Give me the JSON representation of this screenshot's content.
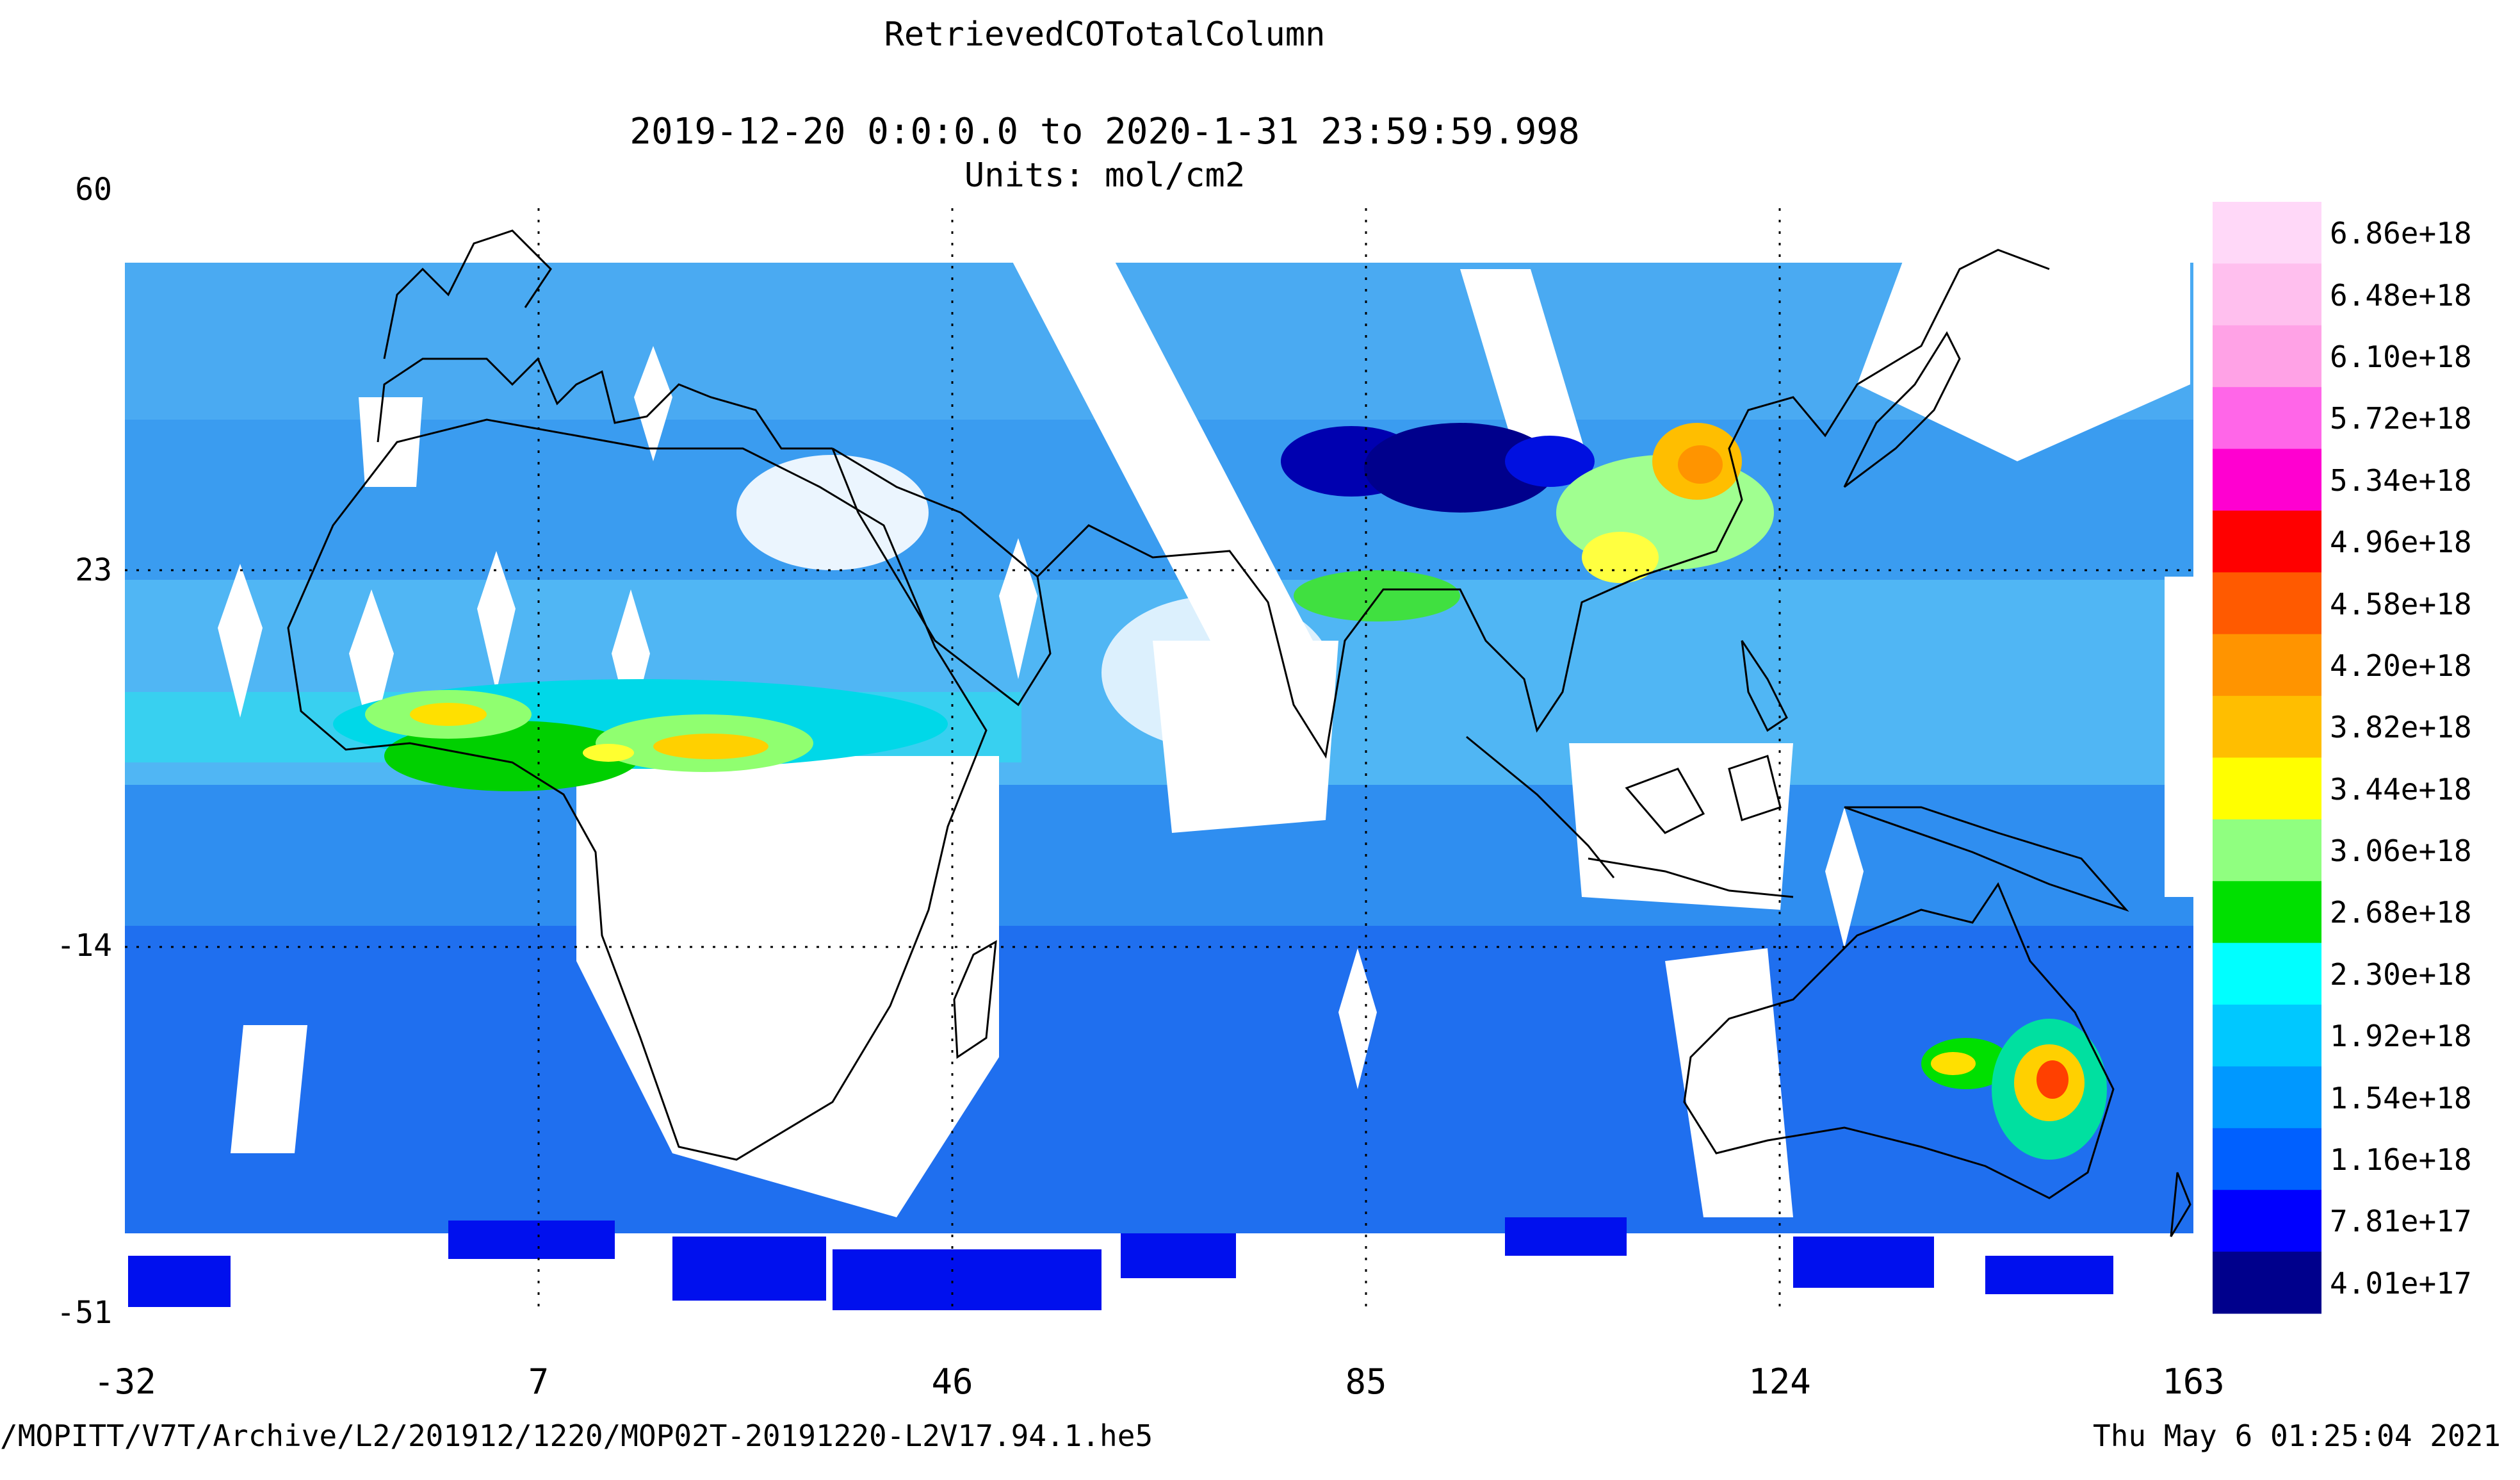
{
  "header": {
    "title": "RetrievedCOTotalColumn",
    "date_range": "2019-12-20 0:0:0.0 to 2020-1-31 23:59:59.998",
    "units": "Units: mol/cm2"
  },
  "axes": {
    "y_ticks": [
      "60",
      "23",
      "-14",
      "-51"
    ],
    "x_ticks": [
      "-32",
      "7",
      "46",
      "85",
      "124",
      "163"
    ]
  },
  "colorbar": {
    "labels": [
      "6.86e+18",
      "6.48e+18",
      "6.10e+18",
      "5.72e+18",
      "5.34e+18",
      "4.96e+18",
      "4.58e+18",
      "4.20e+18",
      "3.82e+18",
      "3.44e+18",
      "3.06e+18",
      "2.68e+18",
      "2.30e+18",
      "1.92e+18",
      "1.54e+18",
      "1.16e+18",
      "7.81e+17",
      "4.01e+17"
    ],
    "colors": [
      "#ffd8f8",
      "#ffbfee",
      "#ffa2e6",
      "#ff66e8",
      "#ff00d0",
      "#ff0000",
      "#ff5a00",
      "#ff9400",
      "#ffbe00",
      "#ffff00",
      "#90ff80",
      "#00e000",
      "#00ffff",
      "#00c8ff",
      "#0098ff",
      "#0060ff",
      "#0000ff",
      "#00008c"
    ]
  },
  "footer": {
    "source": "/MOPITT/V7T/Archive/L2/201912/1220/MOP02T-20191220-L2V17.94.1.he5",
    "timestamp": "Thu May  6 01:25:04 2021"
  }
}
